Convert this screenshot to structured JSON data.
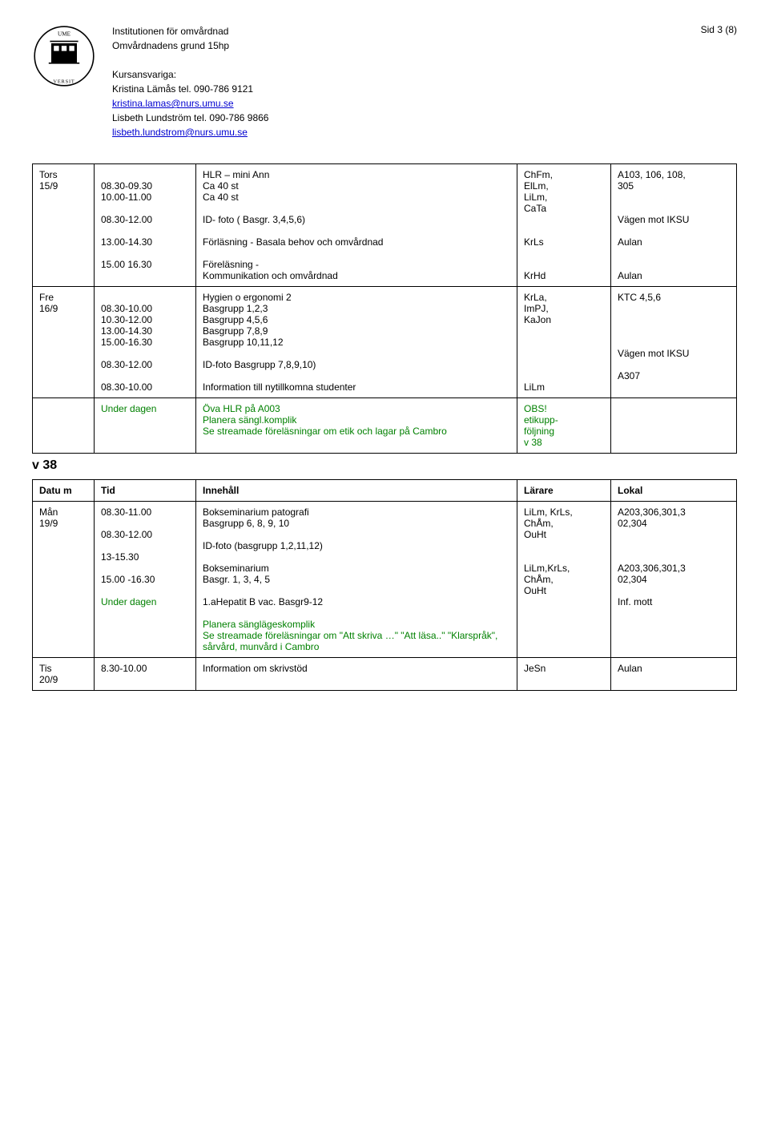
{
  "page_label": "Sid 3 (8)",
  "header": {
    "dept": "Institutionen för omvårdnad",
    "course": "Omvårdnadens grund 15hp",
    "resp_label": "Kursansvariga:",
    "line1": "Kristina Lämås  tel. 090-786 9121",
    "mail1": "kristina.lamas@nurs.umu.se",
    "line2": "Lisbeth Lundström  tel. 090-786 9866",
    "mail2": "lisbeth.lundstrom@nurs.umu.se"
  },
  "rows": [
    {
      "day": "Tors\n15/9",
      "blocks": [
        {
          "t": "08.30-09.30",
          "c": "Ca 40 st"
        },
        {
          "t": "10.00-11.00",
          "c": "Ca 40 st"
        },
        {
          "t": "",
          "c": ""
        },
        {
          "t": "08.30-12.00",
          "c": "ID- foto ( Basgr. 3,4,5,6)"
        },
        {
          "t": "",
          "c": ""
        },
        {
          "t": "13.00-14.30",
          "c": "Förläsning - Basala behov och omvårdnad"
        },
        {
          "t": "",
          "c": ""
        },
        {
          "t": "15.00 16.30",
          "c": "Föreläsning -\nKommunikation och omvårdnad"
        }
      ],
      "pre": "HLR – mini Ann",
      "lar": "ChFm,\nElLm,\nLiLm,\nCaTa\n\n\nKrLs\n\n\nKrHd",
      "lok": "A103, 106, 108,\n305\n\n\nVägen mot IKSU\n\n Aulan\n\n\nAulan"
    },
    {
      "day": "Fre\n16/9",
      "blocks": [
        {
          "t": "08.30-10.00",
          "c": "Basgrupp 1,2,3"
        },
        {
          "t": "10.30-12.00",
          "c": "Basgrupp 4,5,6"
        },
        {
          "t": "13.00-14.30",
          "c": "Basgrupp 7,8,9"
        },
        {
          "t": "15.00-16.30",
          "c": "Basgrupp 10,11,12"
        },
        {
          "t": "",
          "c": ""
        },
        {
          "t": "08.30-12.00",
          "c": "ID-foto  Basgrupp 7,8,9,10)"
        },
        {
          "t": "",
          "c": ""
        },
        {
          "t": "08.30-10.00",
          "c": "Information till nytillkomna studenter"
        }
      ],
      "pre": "Hygien o ergonomi 2",
      "lar": "KrLa,\nImPJ,\nKaJon\n\n\n\n\n\nLiLm",
      "lok": "KTC 4,5,6\n\n\n\n\nVägen mot IKSU\n\nA307"
    },
    {
      "day": "",
      "under": "Under dagen",
      "green": "Öva HLR på A003\nPlanera sängl.komplik\nSe streamade föreläsningar om etik och lagar på Cambro",
      "lar_g": "OBS!\netikupp-\nföljning\nv 38",
      "lok": ""
    }
  ],
  "v38": "v 38",
  "head2": {
    "c1": "Datu\nm",
    "c2": "Tid",
    "c3": "Innehåll",
    "c4": "Lärare",
    "c5": "Lokal"
  },
  "rows2": [
    {
      "day": "Mån\n19/9",
      "blocks": [
        {
          "t": " 08.30-11.00",
          "c": "Bokseminarium patografi\nBasgrupp 6, 8, 9, 10"
        },
        {
          "t": "",
          "c": ""
        },
        {
          "t": "08.30-12.00",
          "c": "ID-foto (basgrupp 1,2,11,12)"
        },
        {
          "t": "",
          "c": ""
        },
        {
          "t": "13-15.30",
          "c": "Bokseminarium\nBasgr. 1, 3, 4, 5"
        },
        {
          "t": "",
          "c": ""
        },
        {
          "t": "15.00 -16.30",
          "c": "1.aHepatit B vac. Basgr9-12"
        }
      ],
      "under": "Under dagen",
      "green": "Planera sänglägeskomplik\nSe streamade föreläsningar om \"Att skriva …\" \"Att läsa..\" \"Klarspråk\", sårvård, munvård i Cambro",
      "lar": "LiLm, KrLs,\nChÅm,\nOuHt\n\n\nLiLm,KrLs,\nChÅm,\nOuHt",
      "lok": "A203,306,301,3\n02,304\n\n\n\nA203,306,301,3\n02,304\n\nInf. mott"
    },
    {
      "day": "Tis\n20/9",
      "blocks": [
        {
          "t": "8.30-10.00",
          "c": "Information om skrivstöd"
        }
      ],
      "lar": "JeSn",
      "lok": "Aulan"
    }
  ]
}
